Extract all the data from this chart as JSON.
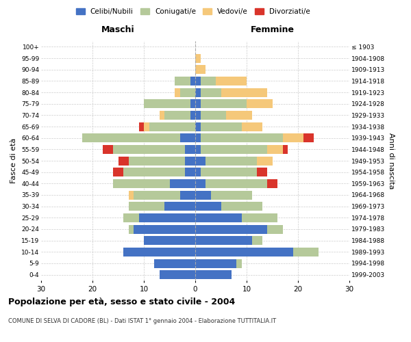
{
  "age_groups": [
    "100+",
    "95-99",
    "90-94",
    "85-89",
    "80-84",
    "75-79",
    "70-74",
    "65-69",
    "60-64",
    "55-59",
    "50-54",
    "45-49",
    "40-44",
    "35-39",
    "30-34",
    "25-29",
    "20-24",
    "15-19",
    "10-14",
    "5-9",
    "0-4"
  ],
  "birth_years": [
    "≤ 1903",
    "1904-1908",
    "1909-1913",
    "1914-1918",
    "1919-1923",
    "1924-1928",
    "1929-1933",
    "1934-1938",
    "1939-1943",
    "1944-1948",
    "1949-1953",
    "1954-1958",
    "1959-1963",
    "1964-1968",
    "1969-1973",
    "1974-1978",
    "1979-1983",
    "1984-1988",
    "1989-1993",
    "1994-1998",
    "1999-2003"
  ],
  "males": {
    "celibe": [
      0,
      0,
      0,
      1,
      0,
      1,
      1,
      0,
      3,
      2,
      2,
      2,
      5,
      3,
      6,
      11,
      12,
      10,
      14,
      8,
      7
    ],
    "coniugato": [
      0,
      0,
      0,
      3,
      3,
      9,
      5,
      9,
      19,
      14,
      11,
      12,
      11,
      9,
      7,
      3,
      1,
      0,
      0,
      0,
      0
    ],
    "vedovo": [
      0,
      0,
      0,
      0,
      1,
      0,
      1,
      1,
      0,
      0,
      0,
      0,
      0,
      1,
      0,
      0,
      0,
      0,
      0,
      0,
      0
    ],
    "divorziato": [
      0,
      0,
      0,
      0,
      0,
      0,
      0,
      1,
      0,
      2,
      2,
      2,
      0,
      0,
      0,
      0,
      0,
      0,
      0,
      0,
      0
    ]
  },
  "females": {
    "nubile": [
      0,
      0,
      0,
      1,
      1,
      1,
      1,
      1,
      1,
      1,
      2,
      1,
      2,
      3,
      5,
      9,
      14,
      11,
      19,
      8,
      7
    ],
    "coniugata": [
      0,
      0,
      0,
      3,
      4,
      9,
      5,
      8,
      16,
      13,
      10,
      11,
      12,
      8,
      8,
      7,
      3,
      2,
      5,
      1,
      0
    ],
    "vedova": [
      0,
      1,
      2,
      6,
      9,
      5,
      5,
      4,
      4,
      3,
      3,
      0,
      0,
      0,
      0,
      0,
      0,
      0,
      0,
      0,
      0
    ],
    "divorziata": [
      0,
      0,
      0,
      0,
      0,
      0,
      0,
      0,
      2,
      1,
      0,
      2,
      2,
      0,
      0,
      0,
      0,
      0,
      0,
      0,
      0
    ]
  },
  "colors": {
    "celibe": "#4472c4",
    "coniugato": "#b5c99a",
    "vedovo": "#f5c87a",
    "divorziato": "#d9342b"
  },
  "xlim": 30,
  "title_main": "Popolazione per età, sesso e stato civile - 2004",
  "title_sub": "COMUNE DI SELVA DI CADORE (BL) - Dati ISTAT 1° gennaio 2004 - Elaborazione TUTTITALIA.IT",
  "ylabel_left": "Fasce di età",
  "ylabel_right": "Anni di nascita",
  "xlabel_left": "Maschi",
  "xlabel_right": "Femmine",
  "legend_labels": [
    "Celibi/Nubili",
    "Coniugati/e",
    "Vedovi/e",
    "Divorziati/e"
  ],
  "bg_color": "#ffffff",
  "grid_color": "#cccccc"
}
